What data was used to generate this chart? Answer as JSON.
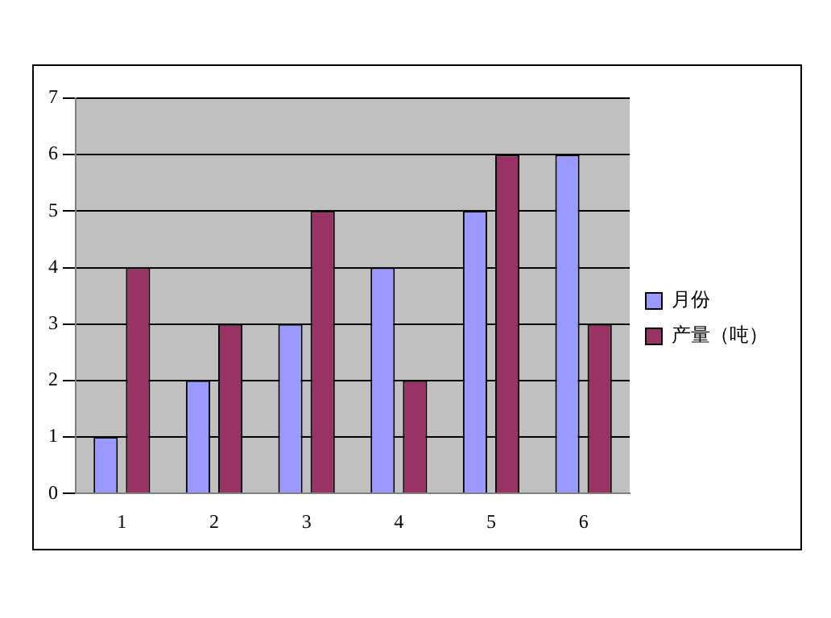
{
  "chart_data": {
    "type": "bar",
    "categories": [
      "1",
      "2",
      "3",
      "4",
      "5",
      "6"
    ],
    "series": [
      {
        "name": "月份",
        "color": "#9999ff",
        "values": [
          1,
          2,
          3,
          4,
          5,
          6
        ]
      },
      {
        "name": "产量（吨）",
        "color": "#993366",
        "values": [
          4,
          3,
          5,
          2,
          6,
          3
        ]
      }
    ],
    "ylim": [
      0,
      7
    ],
    "yticks": [
      0,
      1,
      2,
      3,
      4,
      5,
      6,
      7
    ],
    "grid": "y",
    "legend": "right"
  }
}
